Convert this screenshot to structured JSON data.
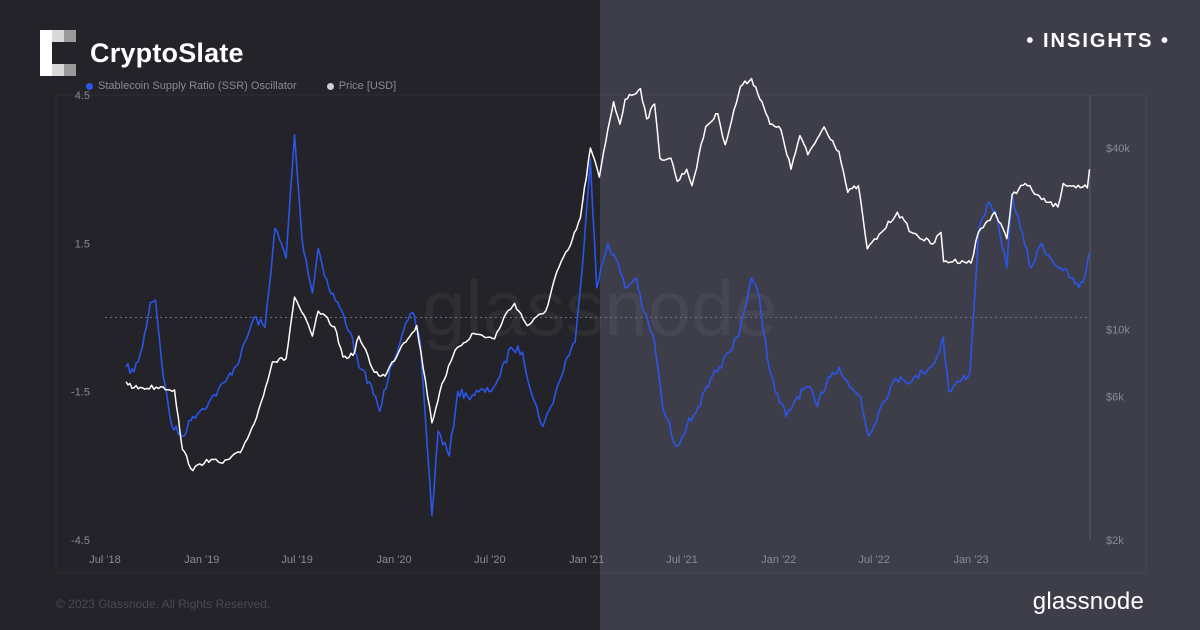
{
  "brand": {
    "name": "CryptoSlate",
    "badge": "• INSIGHTS •"
  },
  "watermark": "glassnode",
  "footer": {
    "copyright": "© 2023 Glassnode. All Rights Reserved.",
    "logo": "glassnode"
  },
  "colors": {
    "ssr": "#2b55e6",
    "price": "#ffffff",
    "bg_left": "#232329",
    "bg_right": "#3e3e4b"
  },
  "chart_data": {
    "type": "line",
    "title": "",
    "legend": [
      {
        "label": "Stablecoin Supply Ratio (SSR) Oscillator",
        "color": "#2b55e6"
      },
      {
        "label": "Price [USD]",
        "color": "#d0d0da"
      }
    ],
    "legend_position": "top-left",
    "grid": false,
    "x_ticks": [
      "Jul '18",
      "Jan '19",
      "Jul '19",
      "Jan '20",
      "Jul '20",
      "Jan '21",
      "Jul '21",
      "Jan '22",
      "Jul '22",
      "Jan '23"
    ],
    "x_range": [
      "2018-07-01",
      "2023-08-15"
    ],
    "y_left": {
      "ticks": [
        "4.5",
        "1.5",
        "-1.5",
        "-4.5"
      ],
      "tick_values": [
        4.5,
        1.5,
        -1.5,
        -4.5
      ],
      "range": [
        -4.5,
        4.5
      ],
      "zero_line": true
    },
    "y_right": {
      "scale": "log",
      "ticks": [
        "$40k",
        "$10k",
        "$6k",
        "$2k"
      ],
      "tick_values": [
        40000,
        10000,
        6000,
        2000
      ],
      "range": [
        2000,
        60000
      ]
    },
    "series": [
      {
        "name": "Stablecoin Supply Ratio (SSR) Oscillator",
        "axis": "left",
        "color": "#2b55e6",
        "points": [
          [
            "2018-08-10",
            -1.0
          ],
          [
            "2018-08-25",
            -1.1
          ],
          [
            "2018-09-10",
            -0.6
          ],
          [
            "2018-09-25",
            0.3
          ],
          [
            "2018-10-05",
            0.35
          ],
          [
            "2018-10-20",
            -1.2
          ],
          [
            "2018-11-05",
            -2.2
          ],
          [
            "2018-11-25",
            -2.4
          ],
          [
            "2018-12-15",
            -2.0
          ],
          [
            "2019-01-15",
            -1.7
          ],
          [
            "2019-02-15",
            -1.3
          ],
          [
            "2019-03-15",
            -0.8
          ],
          [
            "2019-04-10",
            0.0
          ],
          [
            "2019-05-01",
            -0.2
          ],
          [
            "2019-05-20",
            1.8
          ],
          [
            "2019-06-10",
            1.2
          ],
          [
            "2019-06-26",
            3.7
          ],
          [
            "2019-07-10",
            1.6
          ],
          [
            "2019-07-30",
            0.5
          ],
          [
            "2019-08-10",
            1.4
          ],
          [
            "2019-08-30",
            0.6
          ],
          [
            "2019-09-20",
            0.2
          ],
          [
            "2019-10-10",
            -0.3
          ],
          [
            "2019-10-26",
            -1.0
          ],
          [
            "2019-11-15",
            -1.3
          ],
          [
            "2019-12-05",
            -1.9
          ],
          [
            "2019-12-25",
            -1.0
          ],
          [
            "2020-01-15",
            -0.4
          ],
          [
            "2020-02-05",
            0.1
          ],
          [
            "2020-02-20",
            -0.5
          ],
          [
            "2020-03-13",
            -4.0
          ],
          [
            "2020-03-25",
            -2.3
          ],
          [
            "2020-04-15",
            -2.8
          ],
          [
            "2020-05-01",
            -1.5
          ],
          [
            "2020-05-20",
            -1.6
          ],
          [
            "2020-06-10",
            -1.5
          ],
          [
            "2020-06-30",
            -1.5
          ],
          [
            "2020-07-20",
            -1.2
          ],
          [
            "2020-08-10",
            -0.6
          ],
          [
            "2020-09-01",
            -0.7
          ],
          [
            "2020-09-20",
            -1.6
          ],
          [
            "2020-10-10",
            -2.2
          ],
          [
            "2020-10-25",
            -1.8
          ],
          [
            "2020-11-10",
            -1.3
          ],
          [
            "2020-11-25",
            -0.8
          ],
          [
            "2020-12-10",
            -0.5
          ],
          [
            "2020-12-20",
            0.6
          ],
          [
            "2021-01-08",
            3.2
          ],
          [
            "2021-01-20",
            0.6
          ],
          [
            "2021-02-10",
            1.5
          ],
          [
            "2021-02-25",
            1.2
          ],
          [
            "2021-03-15",
            0.6
          ],
          [
            "2021-04-05",
            0.8
          ],
          [
            "2021-04-20",
            0.1
          ],
          [
            "2021-05-10",
            -0.5
          ],
          [
            "2021-05-25",
            -1.8
          ],
          [
            "2021-06-20",
            -2.6
          ],
          [
            "2021-07-10",
            -2.2
          ],
          [
            "2021-08-01",
            -1.8
          ],
          [
            "2021-08-20",
            -1.4
          ],
          [
            "2021-09-10",
            -1.0
          ],
          [
            "2021-10-01",
            -0.7
          ],
          [
            "2021-10-20",
            -0.2
          ],
          [
            "2021-11-10",
            0.8
          ],
          [
            "2021-11-25",
            0.4
          ],
          [
            "2021-12-10",
            -0.8
          ],
          [
            "2021-12-25",
            -1.5
          ],
          [
            "2022-01-15",
            -2.0
          ],
          [
            "2022-02-05",
            -1.6
          ],
          [
            "2022-02-25",
            -1.4
          ],
          [
            "2022-03-15",
            -1.8
          ],
          [
            "2022-04-05",
            -1.2
          ],
          [
            "2022-04-25",
            -1.0
          ],
          [
            "2022-05-15",
            -1.4
          ],
          [
            "2022-06-05",
            -1.6
          ],
          [
            "2022-06-20",
            -2.4
          ],
          [
            "2022-07-10",
            -1.9
          ],
          [
            "2022-08-01",
            -1.4
          ],
          [
            "2022-08-20",
            -1.2
          ],
          [
            "2022-09-10",
            -1.3
          ],
          [
            "2022-10-01",
            -1.1
          ],
          [
            "2022-10-25",
            -0.9
          ],
          [
            "2022-11-09",
            -0.4
          ],
          [
            "2022-11-20",
            -1.5
          ],
          [
            "2022-12-10",
            -1.3
          ],
          [
            "2022-12-30",
            -1.1
          ],
          [
            "2023-01-15",
            1.7
          ],
          [
            "2023-02-01",
            2.3
          ],
          [
            "2023-02-20",
            2.0
          ],
          [
            "2023-03-10",
            1.0
          ],
          [
            "2023-03-20",
            2.5
          ],
          [
            "2023-04-05",
            1.8
          ],
          [
            "2023-04-25",
            1.0
          ],
          [
            "2023-05-15",
            1.5
          ],
          [
            "2023-06-01",
            1.2
          ],
          [
            "2023-06-20",
            1.0
          ],
          [
            "2023-07-10",
            0.8
          ],
          [
            "2023-07-25",
            0.6
          ],
          [
            "2023-08-05",
            0.8
          ],
          [
            "2023-08-13",
            1.3
          ]
        ]
      },
      {
        "name": "Price [USD]",
        "axis": "right",
        "color": "#ffffff",
        "points": [
          [
            "2018-08-10",
            6700
          ],
          [
            "2018-08-25",
            6400
          ],
          [
            "2018-09-10",
            6400
          ],
          [
            "2018-10-15",
            6450
          ],
          [
            "2018-11-10",
            6300
          ],
          [
            "2018-11-25",
            4000
          ],
          [
            "2018-12-15",
            3400
          ],
          [
            "2019-01-10",
            3700
          ],
          [
            "2019-02-10",
            3600
          ],
          [
            "2019-03-15",
            3900
          ],
          [
            "2019-04-15",
            5100
          ],
          [
            "2019-05-15",
            7800
          ],
          [
            "2019-06-10",
            8000
          ],
          [
            "2019-06-26",
            12800
          ],
          [
            "2019-07-10",
            11400
          ],
          [
            "2019-07-30",
            9500
          ],
          [
            "2019-08-10",
            11500
          ],
          [
            "2019-09-10",
            10200
          ],
          [
            "2019-09-26",
            8100
          ],
          [
            "2019-10-15",
            8200
          ],
          [
            "2019-10-26",
            9500
          ],
          [
            "2019-11-25",
            7200
          ],
          [
            "2019-12-15",
            7000
          ],
          [
            "2020-01-15",
            8800
          ],
          [
            "2020-02-13",
            10300
          ],
          [
            "2020-03-13",
            4900
          ],
          [
            "2020-04-01",
            6600
          ],
          [
            "2020-04-30",
            8700
          ],
          [
            "2020-06-01",
            9700
          ],
          [
            "2020-07-10",
            9300
          ],
          [
            "2020-07-28",
            11000
          ],
          [
            "2020-08-17",
            12200
          ],
          [
            "2020-09-10",
            10300
          ],
          [
            "2020-10-15",
            11500
          ],
          [
            "2020-11-05",
            15500
          ],
          [
            "2020-12-01",
            19000
          ],
          [
            "2020-12-20",
            23500
          ],
          [
            "2021-01-08",
            40000
          ],
          [
            "2021-01-25",
            32000
          ],
          [
            "2021-02-10",
            46000
          ],
          [
            "2021-02-21",
            57000
          ],
          [
            "2021-03-05",
            48000
          ],
          [
            "2021-03-15",
            58000
          ],
          [
            "2021-04-13",
            63000
          ],
          [
            "2021-04-25",
            50000
          ],
          [
            "2021-05-10",
            56000
          ],
          [
            "2021-05-20",
            37000
          ],
          [
            "2021-06-10",
            37000
          ],
          [
            "2021-06-22",
            31000
          ],
          [
            "2021-07-10",
            34000
          ],
          [
            "2021-07-20",
            30000
          ],
          [
            "2021-08-15",
            47000
          ],
          [
            "2021-09-07",
            52000
          ],
          [
            "2021-09-21",
            41000
          ],
          [
            "2021-10-20",
            64000
          ],
          [
            "2021-11-10",
            68000
          ],
          [
            "2021-11-30",
            57000
          ],
          [
            "2021-12-15",
            48000
          ],
          [
            "2022-01-05",
            46000
          ],
          [
            "2022-01-24",
            34000
          ],
          [
            "2022-02-10",
            44000
          ],
          [
            "2022-02-25",
            38000
          ],
          [
            "2022-03-28",
            47000
          ],
          [
            "2022-04-25",
            39000
          ],
          [
            "2022-05-12",
            28500
          ],
          [
            "2022-06-01",
            30000
          ],
          [
            "2022-06-18",
            18500
          ],
          [
            "2022-07-15",
            21000
          ],
          [
            "2022-08-14",
            24500
          ],
          [
            "2022-09-10",
            21000
          ],
          [
            "2022-10-20",
            19200
          ],
          [
            "2022-11-05",
            21000
          ],
          [
            "2022-11-10",
            16800
          ],
          [
            "2022-12-15",
            16900
          ],
          [
            "2023-01-01",
            16600
          ],
          [
            "2023-01-15",
            21000
          ],
          [
            "2023-02-15",
            24500
          ],
          [
            "2023-03-10",
            20000
          ],
          [
            "2023-03-20",
            28000
          ],
          [
            "2023-04-14",
            30500
          ],
          [
            "2023-05-15",
            27000
          ],
          [
            "2023-06-15",
            25500
          ],
          [
            "2023-06-25",
            30500
          ],
          [
            "2023-07-15",
            30000
          ],
          [
            "2023-08-10",
            29500
          ],
          [
            "2023-08-14",
            34000
          ]
        ]
      }
    ]
  }
}
